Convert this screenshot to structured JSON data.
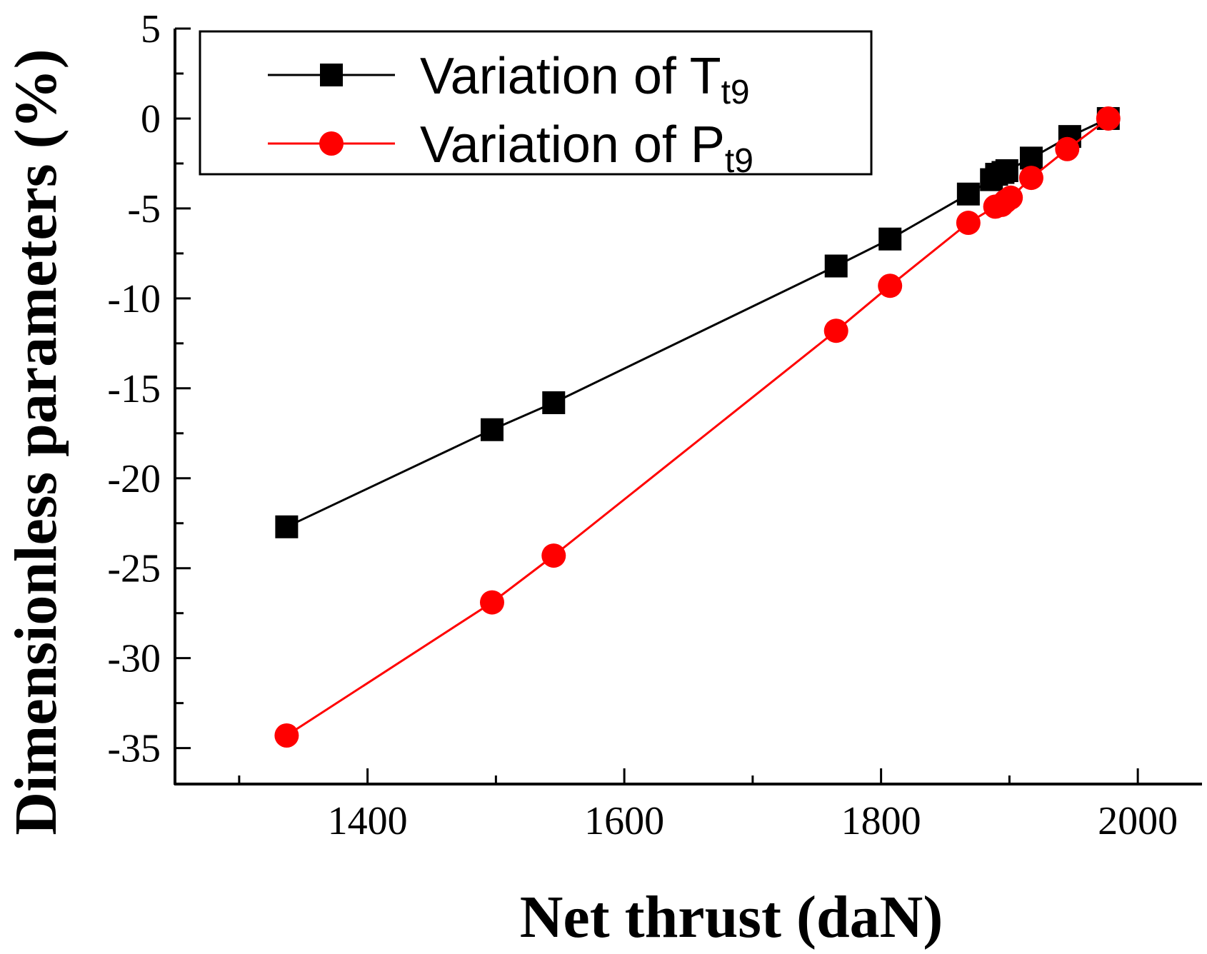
{
  "chart_data": {
    "type": "line",
    "title": "",
    "xlabel": "Net thrust (daN)",
    "ylabel": "Dimensionless parameters (%)",
    "xlim": [
      1250,
      2050
    ],
    "ylim": [
      -37,
      5
    ],
    "x_ticks": [
      1400,
      1600,
      1800,
      2000
    ],
    "y_ticks": [
      5,
      0,
      -5,
      -10,
      -15,
      -20,
      -25,
      -30,
      -35
    ],
    "grid": false,
    "legend_position": "top-left",
    "series": [
      {
        "name": "Variation of Tt9",
        "legend_main": "Variation of T",
        "legend_sub": "t9",
        "color": "#000000",
        "marker": "square",
        "x": [
          1337,
          1497,
          1545,
          1765,
          1807,
          1868,
          1886,
          1890,
          1895,
          1898,
          1917,
          1947,
          1977
        ],
        "y": [
          -22.7,
          -17.3,
          -15.8,
          -8.2,
          -6.7,
          -4.2,
          -3.4,
          -3.1,
          -3.0,
          -2.9,
          -2.2,
          -1.0,
          0.0
        ]
      },
      {
        "name": "Variation of Pt9",
        "legend_main": "Variation of P",
        "legend_sub": "t9",
        "color": "#ff0000",
        "marker": "circle",
        "x": [
          1337,
          1497,
          1545,
          1765,
          1807,
          1868,
          1889,
          1894,
          1897,
          1901,
          1917,
          1945,
          1977
        ],
        "y": [
          -34.3,
          -26.9,
          -24.3,
          -11.8,
          -9.3,
          -5.8,
          -4.9,
          -4.8,
          -4.6,
          -4.4,
          -3.3,
          -1.7,
          0.0
        ]
      }
    ]
  }
}
